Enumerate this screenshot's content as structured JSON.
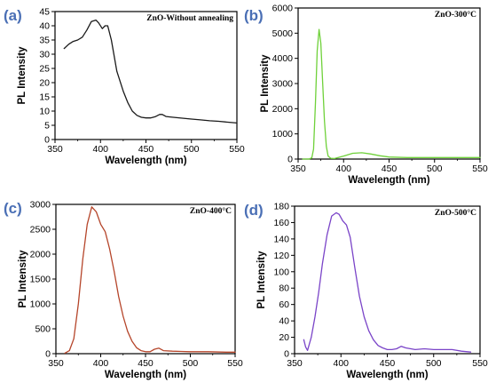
{
  "chart_data": [
    {
      "panel": "(a)",
      "type": "line",
      "title": "ZnO-Without annealing",
      "xlabel": "Wavelength (nm)",
      "ylabel": "PL Intensity",
      "xlim": [
        350,
        550
      ],
      "ylim": [
        0,
        45
      ],
      "xticks": [
        350,
        400,
        450,
        500,
        550
      ],
      "yticks": [
        0,
        5,
        10,
        15,
        20,
        25,
        30,
        35,
        40,
        45
      ],
      "grid": false,
      "color": "#1a1a1a",
      "series": [
        {
          "x": [
            360,
            365,
            370,
            375,
            380,
            385,
            390,
            395,
            398,
            402,
            405,
            408,
            412,
            418,
            425,
            430,
            435,
            440,
            445,
            450,
            455,
            460,
            465,
            468,
            472,
            480,
            490,
            500,
            510,
            520,
            530,
            540,
            550
          ],
          "values": [
            32,
            33.5,
            34.5,
            35,
            36,
            38.5,
            41.5,
            42,
            41,
            39,
            40,
            40,
            35,
            24,
            17,
            13,
            10,
            8.5,
            7.8,
            7.6,
            7.6,
            8,
            8.8,
            8.8,
            8.1,
            7.8,
            7.5,
            7.2,
            6.9,
            6.6,
            6.4,
            6.1,
            5.8
          ]
        }
      ]
    },
    {
      "panel": "(b)",
      "type": "line",
      "title": "ZnO-300°C",
      "xlabel": "Wavelength (nm)",
      "ylabel": "PL Intensity",
      "xlim": [
        350,
        550
      ],
      "ylim": [
        0,
        6000
      ],
      "xticks": [
        350,
        400,
        450,
        500,
        550
      ],
      "yticks": [
        0,
        1000,
        2000,
        3000,
        4000,
        5000,
        6000
      ],
      "grid": false,
      "color": "#6fd13a",
      "series": [
        {
          "x": [
            355,
            362,
            365,
            367,
            369,
            371,
            373,
            375,
            377,
            379,
            381,
            383,
            386,
            390,
            400,
            410,
            420,
            430,
            440,
            450,
            470,
            500,
            550
          ],
          "values": [
            0,
            0,
            50,
            400,
            2200,
            4300,
            5150,
            4600,
            3000,
            1500,
            500,
            120,
            30,
            20,
            120,
            230,
            250,
            200,
            130,
            80,
            60,
            60,
            60
          ]
        }
      ]
    },
    {
      "panel": "(c)",
      "type": "line",
      "title": "ZnO-400°C",
      "xlabel": "Wavelength (nm)",
      "ylabel": "PL Intensity",
      "xlim": [
        350,
        550
      ],
      "ylim": [
        0,
        3000
      ],
      "xticks": [
        350,
        400,
        450,
        500,
        550
      ],
      "yticks": [
        0,
        500,
        1000,
        1500,
        2000,
        2500,
        3000
      ],
      "grid": false,
      "color": "#b5452a",
      "series": [
        {
          "x": [
            360,
            365,
            370,
            375,
            380,
            385,
            390,
            395,
            400,
            405,
            410,
            415,
            420,
            425,
            430,
            435,
            440,
            445,
            450,
            455,
            460,
            465,
            470,
            480,
            490,
            500,
            520,
            540,
            550
          ],
          "values": [
            10,
            60,
            300,
            1000,
            1900,
            2600,
            2950,
            2850,
            2600,
            2450,
            2100,
            1650,
            1150,
            750,
            450,
            250,
            120,
            60,
            40,
            40,
            90,
            110,
            60,
            50,
            45,
            40,
            40,
            30,
            30
          ]
        }
      ]
    },
    {
      "panel": "(d)",
      "type": "line",
      "title": "ZnO-500°C",
      "xlabel": "Wavelength (nm)",
      "ylabel": "PL Intensity",
      "xlim": [
        350,
        550
      ],
      "ylim": [
        0,
        180
      ],
      "xticks": [
        350,
        400,
        450,
        500,
        550
      ],
      "yticks": [
        0,
        20,
        40,
        60,
        80,
        100,
        120,
        140,
        160,
        180
      ],
      "grid": false,
      "color": "#7a44c8",
      "series": [
        {
          "x": [
            360,
            362,
            364,
            368,
            372,
            376,
            380,
            385,
            390,
            395,
            398,
            402,
            406,
            410,
            415,
            420,
            425,
            430,
            435,
            440,
            445,
            450,
            455,
            460,
            465,
            470,
            480,
            490,
            500,
            510,
            520,
            530,
            540
          ],
          "values": [
            17,
            8,
            4,
            20,
            45,
            75,
            110,
            145,
            168,
            172,
            170,
            162,
            157,
            142,
            105,
            70,
            45,
            28,
            17,
            10,
            7,
            5,
            5,
            6,
            9,
            7,
            5,
            6,
            5,
            5,
            5,
            3,
            2
          ]
        }
      ]
    }
  ]
}
